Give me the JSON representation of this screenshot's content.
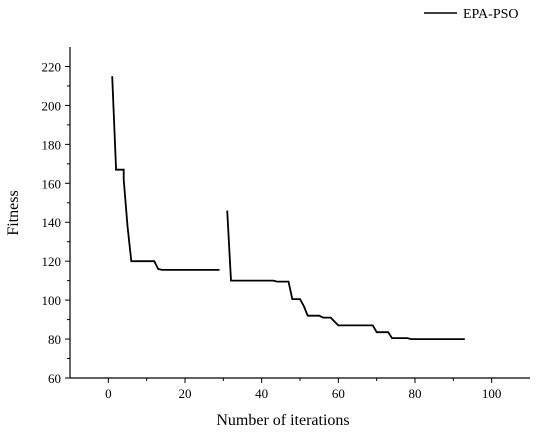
{
  "chart_data": {
    "type": "line",
    "title": "",
    "xlabel": "Number of iterations",
    "ylabel": "Fitness",
    "xlim": [
      -10,
      110
    ],
    "ylim": [
      60,
      230
    ],
    "xticks": [
      0,
      20,
      40,
      60,
      80,
      100
    ],
    "yticks": [
      60,
      80,
      100,
      120,
      140,
      160,
      180,
      200,
      220
    ],
    "grid": false,
    "legend": "top-right",
    "colors": {
      "line": "#000000"
    },
    "series": [
      {
        "name": "EPA-PSO",
        "segments": [
          {
            "x": [
              1,
              2,
              2,
              4,
              4,
              5,
              6,
              12,
              13,
              14,
              29
            ],
            "y": [
              215,
              168,
              167,
              167,
              162,
              138,
              120,
              120,
              116,
              115.5,
              115.5
            ]
          },
          {
            "x": [
              31,
              32,
              43,
              44,
              47,
              48,
              50,
              51,
              52,
              55,
              56,
              58,
              60,
              61,
              69,
              70,
              73,
              74,
              78,
              79,
              93
            ],
            "y": [
              146,
              110,
              110,
              109.5,
              109.5,
              100.5,
              100.5,
              97,
              92,
              92,
              91,
              91,
              87,
              87,
              87,
              83.5,
              83.5,
              80.5,
              80.5,
              80,
              80
            ]
          }
        ]
      }
    ]
  }
}
